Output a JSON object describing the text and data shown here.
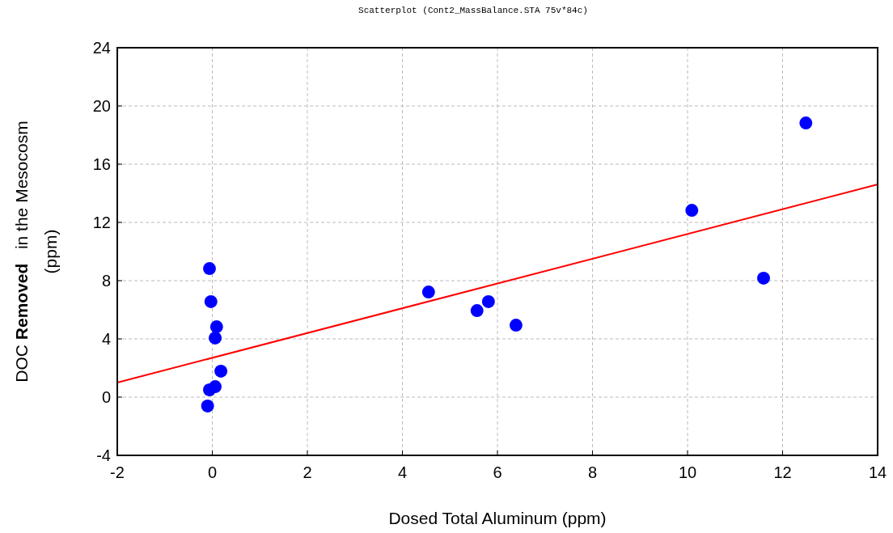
{
  "chart_data": {
    "type": "scatter",
    "title": "Scatterplot (Cont2_MassBalance.STA 75v*84c)",
    "xlabel": "Dosed Total Aluminum (ppm)",
    "ylabel": "DOC Removed   in the Mesocosm\n(ppm)",
    "xlim": [
      -2,
      14
    ],
    "xticks": [
      -2,
      0,
      2,
      4,
      6,
      8,
      10,
      12,
      14
    ],
    "ylim": [
      -4,
      24
    ],
    "yticks": [
      -4,
      0,
      4,
      8,
      12,
      16,
      20,
      24
    ],
    "grid": true,
    "series": [
      {
        "color": "#0000ff",
        "marker": "circle",
        "x": [
          -0.06,
          -0.03,
          0.09,
          0.06,
          0.18,
          0.06,
          -0.06,
          -0.1,
          4.55,
          5.57,
          5.81,
          6.39,
          10.09,
          11.6,
          12.49
        ],
        "values": [
          8.83,
          6.56,
          4.83,
          4.06,
          1.78,
          0.72,
          0.5,
          -0.61,
          7.22,
          5.94,
          6.56,
          4.94,
          12.83,
          8.17,
          18.83
        ]
      },
      {
        "type": "line",
        "marker": "none",
        "color": "#ff0000",
        "x": [
          -2,
          14
        ],
        "values": [
          1.0,
          14.61
        ]
      }
    ]
  }
}
